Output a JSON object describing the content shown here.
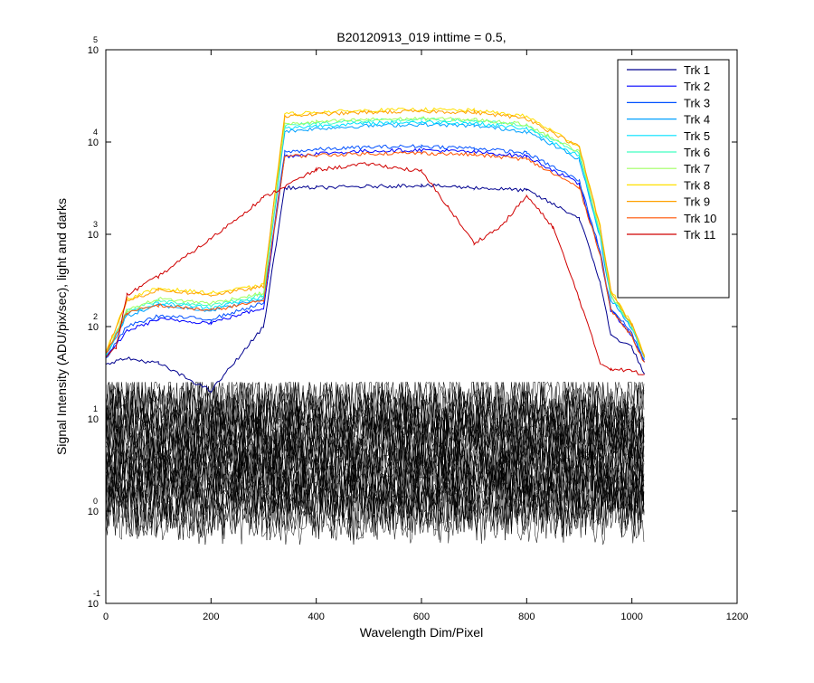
{
  "chart_data": {
    "type": "line",
    "title": "B20120913_019 inttime = 0.5,",
    "xlabel": "Wavelength Dim/Pixel",
    "ylabel": "Signal Intensity (ADU/pix/sec), light and darks",
    "xlim": [
      0,
      1200
    ],
    "ylim": [
      0.1,
      100000
    ],
    "y_scale": "log",
    "x_ticks": [
      "0",
      "200",
      "400",
      "600",
      "800",
      "1000",
      "1200"
    ],
    "y_ticks": [
      {
        "base": "10",
        "exp": "-1",
        "value": 0.1
      },
      {
        "base": "10",
        "exp": "0",
        "value": 1
      },
      {
        "base": "10",
        "exp": "1",
        "value": 10
      },
      {
        "base": "10",
        "exp": "2",
        "value": 100
      },
      {
        "base": "10",
        "exp": "3",
        "value": 1000
      },
      {
        "base": "10",
        "exp": "4",
        "value": 10000
      },
      {
        "base": "10",
        "exp": "5",
        "value": 100000
      }
    ],
    "grid": false,
    "legend_position": "top-right",
    "series": [
      {
        "name": "Trk 1",
        "color": "#00008f",
        "x": [
          0,
          40,
          100,
          200,
          300,
          340,
          400,
          500,
          600,
          700,
          800,
          900,
          940,
          960,
          1000,
          1024
        ],
        "y": [
          40,
          45,
          40,
          20,
          100,
          3200,
          3200,
          3300,
          3400,
          3200,
          3000,
          1500,
          300,
          80,
          60,
          30
        ]
      },
      {
        "name": "Trk 2",
        "color": "#0000ff",
        "x": [
          0,
          40,
          100,
          200,
          300,
          340,
          400,
          500,
          600,
          700,
          800,
          900,
          940,
          960,
          1000,
          1024
        ],
        "y": [
          45,
          90,
          120,
          110,
          160,
          7000,
          7500,
          8000,
          8200,
          7800,
          7000,
          3500,
          600,
          150,
          80,
          40
        ]
      },
      {
        "name": "Trk 3",
        "color": "#0050ff",
        "x": [
          0,
          40,
          100,
          200,
          300,
          340,
          400,
          500,
          600,
          700,
          800,
          900,
          940,
          960,
          1000,
          1024
        ],
        "y": [
          45,
          100,
          130,
          120,
          180,
          7800,
          8300,
          8800,
          9000,
          8600,
          7600,
          3800,
          650,
          160,
          85,
          42
        ]
      },
      {
        "name": "Trk 4",
        "color": "#00a0ff",
        "x": [
          0,
          40,
          100,
          200,
          300,
          340,
          400,
          500,
          600,
          700,
          800,
          900,
          940,
          960,
          1000,
          1024
        ],
        "y": [
          48,
          130,
          170,
          150,
          200,
          13000,
          14000,
          15000,
          15500,
          15000,
          13000,
          6500,
          900,
          200,
          95,
          45
        ]
      },
      {
        "name": "Trk 5",
        "color": "#00e0ff",
        "x": [
          0,
          40,
          100,
          200,
          300,
          340,
          400,
          500,
          600,
          700,
          800,
          900,
          940,
          960,
          1000,
          1024
        ],
        "y": [
          48,
          140,
          180,
          160,
          210,
          14000,
          15000,
          16000,
          16500,
          16000,
          14000,
          7000,
          950,
          210,
          98,
          46
        ]
      },
      {
        "name": "Trk 6",
        "color": "#40ffc0",
        "x": [
          0,
          40,
          100,
          200,
          300,
          340,
          400,
          500,
          600,
          700,
          800,
          900,
          940,
          960,
          1000,
          1024
        ],
        "y": [
          50,
          150,
          190,
          170,
          220,
          15000,
          16000,
          17000,
          17500,
          17000,
          15000,
          7500,
          1000,
          220,
          100,
          47
        ]
      },
      {
        "name": "Trk 7",
        "color": "#a0ff60",
        "x": [
          0,
          40,
          100,
          200,
          300,
          340,
          400,
          500,
          600,
          700,
          800,
          900,
          940,
          960,
          1000,
          1024
        ],
        "y": [
          50,
          150,
          200,
          180,
          230,
          15500,
          16500,
          17500,
          18000,
          17500,
          15500,
          7800,
          1050,
          225,
          100,
          47
        ]
      },
      {
        "name": "Trk 8",
        "color": "#ffe000",
        "x": [
          0,
          40,
          100,
          200,
          300,
          340,
          400,
          500,
          600,
          700,
          800,
          900,
          940,
          960,
          1000,
          1024
        ],
        "y": [
          52,
          200,
          260,
          230,
          280,
          20000,
          21000,
          22000,
          22500,
          22000,
          19000,
          9000,
          1200,
          250,
          105,
          48
        ]
      },
      {
        "name": "Trk 9",
        "color": "#ffa000",
        "x": [
          0,
          40,
          100,
          200,
          300,
          340,
          400,
          500,
          600,
          700,
          800,
          900,
          940,
          960,
          1000,
          1024
        ],
        "y": [
          52,
          190,
          250,
          220,
          270,
          19000,
          20000,
          21000,
          21500,
          21000,
          18000,
          8800,
          1150,
          240,
          104,
          48
        ]
      },
      {
        "name": "Trk 10",
        "color": "#ff5000",
        "x": [
          0,
          40,
          100,
          200,
          300,
          340,
          400,
          500,
          600,
          700,
          800,
          900,
          940,
          960,
          1000,
          1024
        ],
        "y": [
          50,
          140,
          170,
          150,
          190,
          7000,
          7200,
          7500,
          7600,
          7300,
          6500,
          3200,
          600,
          150,
          80,
          40
        ]
      },
      {
        "name": "Trk 11",
        "color": "#d00000",
        "x": [
          0,
          20,
          40,
          100,
          200,
          300,
          400,
          500,
          600,
          650,
          700,
          750,
          800,
          850,
          900,
          940,
          960,
          1000,
          1024
        ],
        "y": [
          45,
          60,
          220,
          350,
          900,
          2500,
          5000,
          5800,
          4800,
          2000,
          800,
          1200,
          2600,
          1200,
          200,
          40,
          35,
          33,
          30
        ]
      }
    ],
    "dark_band": {
      "color": "#000000",
      "x_range": [
        0,
        1024
      ],
      "y_range": [
        0.3,
        25
      ]
    }
  }
}
